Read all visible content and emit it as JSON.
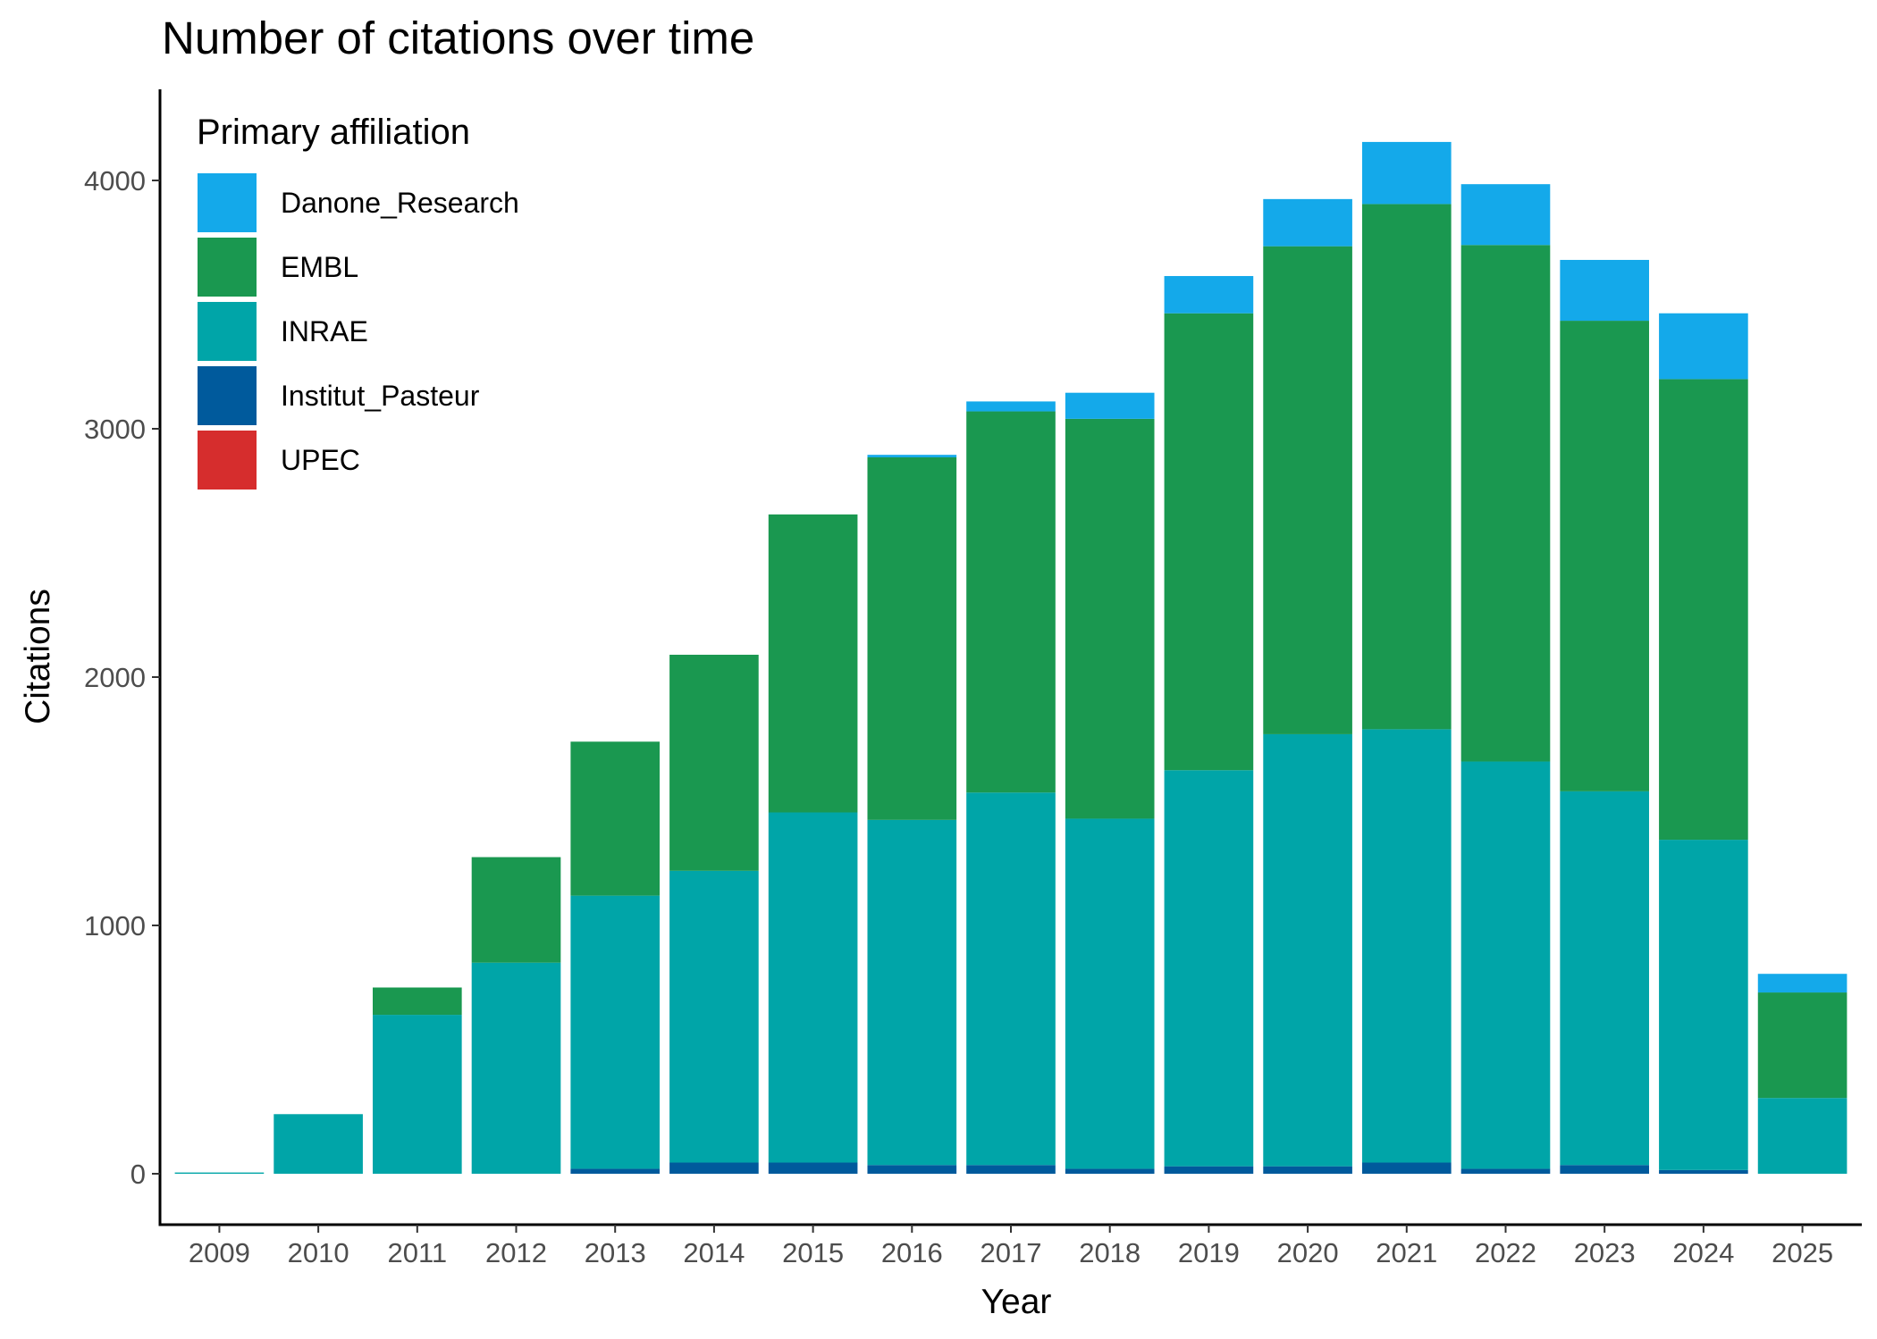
{
  "chart_data": {
    "type": "bar",
    "stacked": true,
    "title": "Number of citations over time",
    "xlabel": "Year",
    "ylabel": "Citations",
    "ylim": [
      -200,
      4370
    ],
    "yticks": [
      0,
      1000,
      2000,
      3000,
      4000
    ],
    "grid": false,
    "legend": {
      "title": "Primary affiliation",
      "position": "top-left inside"
    },
    "categories": [
      "2009",
      "2010",
      "2011",
      "2012",
      "2013",
      "2014",
      "2015",
      "2016",
      "2017",
      "2018",
      "2019",
      "2020",
      "2021",
      "2022",
      "2023",
      "2024",
      "2025"
    ],
    "series": [
      {
        "name": "UPEC",
        "color": "#d62d2d",
        "values": [
          0,
          0,
          0,
          0,
          0,
          0,
          0,
          0,
          0,
          0,
          0,
          0,
          0,
          0,
          0,
          0,
          0
        ]
      },
      {
        "name": "Institut_Pasteur",
        "color": "#005a9c",
        "values": [
          0,
          0,
          0,
          0,
          20,
          45,
          45,
          35,
          35,
          20,
          30,
          30,
          45,
          20,
          35,
          15,
          0
        ]
      },
      {
        "name": "INRAE",
        "color": "#00a5a8",
        "values": [
          5,
          240,
          640,
          850,
          1100,
          1175,
          1410,
          1390,
          1500,
          1410,
          1595,
          1740,
          1745,
          1640,
          1505,
          1330,
          305
        ]
      },
      {
        "name": "EMBL",
        "color": "#1a9850",
        "values": [
          0,
          0,
          110,
          425,
          620,
          870,
          1200,
          1460,
          1535,
          1610,
          1840,
          1965,
          2115,
          2080,
          1895,
          1855,
          425
        ]
      },
      {
        "name": "Danone_Research",
        "color": "#14a9ea",
        "values": [
          0,
          0,
          0,
          0,
          0,
          0,
          0,
          10,
          40,
          105,
          150,
          190,
          250,
          245,
          245,
          265,
          75
        ]
      }
    ]
  },
  "legend_order": [
    "Danone_Research",
    "EMBL",
    "INRAE",
    "Institut_Pasteur",
    "UPEC"
  ]
}
